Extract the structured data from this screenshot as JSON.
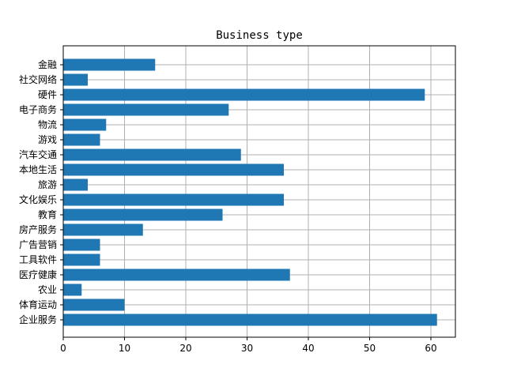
{
  "chart_data": {
    "type": "bar",
    "orientation": "horizontal",
    "title": "Business type",
    "xlabel": "",
    "ylabel": "",
    "xlim": [
      0,
      64
    ],
    "xticks": [
      0,
      10,
      20,
      30,
      40,
      50,
      60
    ],
    "grid": true,
    "bar_color": "#1f77b4",
    "grid_color": "#b0b0b0",
    "categories": [
      "金融",
      "社交网络",
      "硬件",
      "电子商务",
      "物流",
      "游戏",
      "汽车交通",
      "本地生活",
      "旅游",
      "文化娱乐",
      "教育",
      "房产服务",
      "广告营销",
      "工具软件",
      "医疗健康",
      "农业",
      "体育运动",
      "企业服务"
    ],
    "values": [
      15,
      4,
      59,
      27,
      7,
      6,
      29,
      36,
      4,
      36,
      26,
      13,
      6,
      6,
      37,
      3,
      10,
      61
    ]
  }
}
